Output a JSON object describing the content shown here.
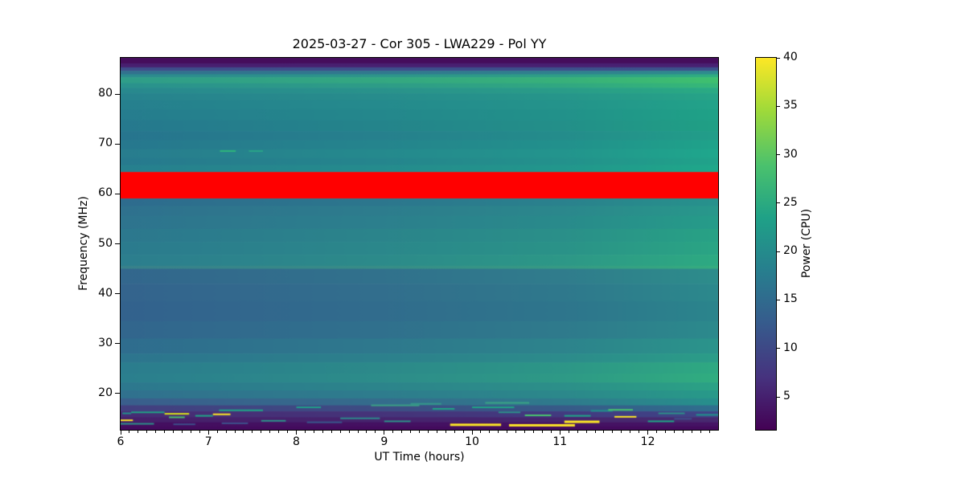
{
  "chart_data": {
    "type": "heatmap",
    "title": "2025-03-27 - Cor 305 - LWA229 - Pol YY",
    "xlabel": "UT Time (hours)",
    "ylabel": "Frequency (MHz)",
    "x_range": [
      6,
      12.8
    ],
    "y_range": [
      12.7,
      87.3
    ],
    "x_major_ticks": [
      6,
      7,
      8,
      9,
      10,
      11,
      12
    ],
    "x_minor_tick_step": 0.1,
    "y_major_ticks": [
      20,
      30,
      40,
      50,
      60,
      70,
      80
    ],
    "grid": false,
    "colorbar": {
      "label": "Power (CPU)",
      "ticks": [
        5,
        10,
        15,
        20,
        25,
        30,
        35,
        40
      ],
      "range": [
        1.6,
        40
      ],
      "colormap": "viridis",
      "gradient": [
        [
          0.0,
          "#440154"
        ],
        [
          0.14,
          "#46327e"
        ],
        [
          0.29,
          "#365c8d"
        ],
        [
          0.43,
          "#277f8e"
        ],
        [
          0.57,
          "#1fa187"
        ],
        [
          0.71,
          "#4ac16d"
        ],
        [
          0.86,
          "#a0da39"
        ],
        [
          1.0,
          "#fde725"
        ]
      ]
    },
    "flagged_band": {
      "f_lo": 59.1,
      "f_hi": 64.4,
      "color": "#ff0000",
      "meaning": "saturated/flagged RFI band"
    },
    "bands": [
      {
        "f_hi": 87.3,
        "f_lo": 86.2,
        "left": "#450d5c",
        "right": "#450d5c"
      },
      {
        "f_hi": 86.2,
        "f_lo": 85.4,
        "left": "#481f70",
        "right": "#482173"
      },
      {
        "f_hi": 85.4,
        "f_lo": 84.7,
        "left": "#3f4d8a",
        "right": "#3c528c"
      },
      {
        "f_hi": 84.7,
        "f_lo": 84.0,
        "left": "#32718e",
        "right": "#2e8c8e"
      },
      {
        "f_hi": 84.0,
        "f_lo": 83.4,
        "left": "#2c8b8e",
        "right": "#2fae80"
      },
      {
        "f_hi": 83.4,
        "f_lo": 82.2,
        "left": "#2f9d89",
        "right": "#3fc06f"
      },
      {
        "f_hi": 82.2,
        "f_lo": 81.3,
        "left": "#2a928d",
        "right": "#36b878"
      },
      {
        "f_hi": 81.3,
        "f_lo": 80.2,
        "left": "#28898e",
        "right": "#2aab83"
      },
      {
        "f_hi": 80.2,
        "f_lo": 78.8,
        "left": "#27838e",
        "right": "#26a487"
      },
      {
        "f_hi": 78.8,
        "f_lo": 77.0,
        "left": "#26808e",
        "right": "#22a389"
      },
      {
        "f_hi": 77.0,
        "f_lo": 74.8,
        "left": "#267d8e",
        "right": "#1fa287"
      },
      {
        "f_hi": 74.8,
        "f_lo": 72.6,
        "left": "#26798e",
        "right": "#20a085"
      },
      {
        "f_hi": 72.6,
        "f_lo": 70.8,
        "left": "#27758e",
        "right": "#229e89"
      },
      {
        "f_hi": 70.8,
        "f_lo": 69.0,
        "left": "#27788e",
        "right": "#1fa38a"
      },
      {
        "f_hi": 69.0,
        "f_lo": 67.2,
        "left": "#287d8e",
        "right": "#1fa78c"
      },
      {
        "f_hi": 67.2,
        "f_lo": 65.8,
        "left": "#277a8e",
        "right": "#20a38a"
      },
      {
        "f_hi": 65.8,
        "f_lo": 64.4,
        "left": "#27808e",
        "right": "#1fa88a"
      },
      {
        "f_hi": 59.1,
        "f_lo": 57.6,
        "left": "#2e6c8e",
        "right": "#27928c"
      },
      {
        "f_hi": 57.6,
        "f_lo": 55.6,
        "left": "#2f718e",
        "right": "#28988b"
      },
      {
        "f_hi": 55.6,
        "f_lo": 53.0,
        "left": "#2e748e",
        "right": "#269c89"
      },
      {
        "f_hi": 53.0,
        "f_lo": 50.4,
        "left": "#2c788e",
        "right": "#28a285"
      },
      {
        "f_hi": 50.4,
        "f_lo": 47.8,
        "left": "#2b7b8e",
        "right": "#2aa584"
      },
      {
        "f_hi": 47.8,
        "f_lo": 45.6,
        "left": "#2c7e8e",
        "right": "#2daa82"
      },
      {
        "f_hi": 45.6,
        "f_lo": 45.0,
        "left": "#38818b",
        "right": "#35ad7f"
      },
      {
        "f_hi": 45.0,
        "f_lo": 42.0,
        "left": "#33678d",
        "right": "#2d8d8b"
      },
      {
        "f_hi": 42.0,
        "f_lo": 38.5,
        "left": "#34648d",
        "right": "#2c898c"
      },
      {
        "f_hi": 38.5,
        "f_lo": 34.5,
        "left": "#33628d",
        "right": "#2b858c"
      },
      {
        "f_hi": 34.5,
        "f_lo": 31.0,
        "left": "#32668d",
        "right": "#2c8a8c"
      },
      {
        "f_hi": 31.0,
        "f_lo": 28.0,
        "left": "#2f6d8e",
        "right": "#2b948b"
      },
      {
        "f_hi": 28.0,
        "f_lo": 26.2,
        "left": "#2d758e",
        "right": "#2b9d88"
      },
      {
        "f_hi": 26.2,
        "f_lo": 24.0,
        "left": "#2b7d8e",
        "right": "#2fa982"
      },
      {
        "f_hi": 24.0,
        "f_lo": 22.2,
        "left": "#2b7f8e",
        "right": "#31ad80"
      },
      {
        "f_hi": 22.2,
        "f_lo": 20.6,
        "left": "#2d788e",
        "right": "#2ba285"
      },
      {
        "f_hi": 20.6,
        "f_lo": 19.0,
        "left": "#31718e",
        "right": "#289a89"
      },
      {
        "f_hi": 19.0,
        "f_lo": 17.6,
        "left": "#3a5e8c",
        "right": "#27908c"
      },
      {
        "f_hi": 17.6,
        "f_lo": 16.4,
        "left": "#433f80",
        "right": "#2f6f8e"
      },
      {
        "f_hi": 16.4,
        "f_lo": 15.2,
        "left": "#472c74",
        "right": "#3f4588"
      },
      {
        "f_hi": 15.2,
        "f_lo": 14.2,
        "left": "#46206b",
        "right": "#472a70"
      },
      {
        "f_hi": 14.2,
        "f_lo": 13.4,
        "left": "#440f60",
        "right": "#451465"
      },
      {
        "f_hi": 13.4,
        "f_lo": 12.7,
        "left": "#430b5d",
        "right": "#430b5d"
      }
    ],
    "rfi_streaks": [
      {
        "t": 6.0,
        "dt": 0.14,
        "f": 14.6,
        "color": "#fde725",
        "h": 2
      },
      {
        "t": 6.0,
        "dt": 0.38,
        "f": 13.9,
        "color": "#2d9089",
        "h": 2
      },
      {
        "t": 6.02,
        "dt": 0.1,
        "f": 16.0,
        "color": "#21918c",
        "h": 2
      },
      {
        "t": 6.12,
        "dt": 0.38,
        "f": 16.2,
        "color": "#20a486",
        "h": 2
      },
      {
        "t": 6.5,
        "dt": 0.28,
        "f": 15.9,
        "color": "#d8e219",
        "h": 2
      },
      {
        "t": 6.55,
        "dt": 0.18,
        "f": 15.2,
        "color": "#49c16d",
        "h": 2
      },
      {
        "t": 6.6,
        "dt": 0.25,
        "f": 13.8,
        "color": "#3d4e8a",
        "h": 2
      },
      {
        "t": 6.85,
        "dt": 0.2,
        "f": 15.5,
        "color": "#20a486",
        "h": 2
      },
      {
        "t": 7.05,
        "dt": 0.2,
        "f": 15.8,
        "color": "#fde725",
        "h": 2
      },
      {
        "t": 7.12,
        "dt": 0.5,
        "f": 16.6,
        "color": "#20a486",
        "h": 2
      },
      {
        "t": 7.15,
        "dt": 0.3,
        "f": 14.0,
        "color": "#3d4e8a",
        "h": 2
      },
      {
        "t": 7.6,
        "dt": 0.28,
        "f": 14.5,
        "color": "#2d9089",
        "h": 2
      },
      {
        "t": 8.0,
        "dt": 0.28,
        "f": 17.2,
        "color": "#21a08a",
        "h": 2
      },
      {
        "t": 8.12,
        "dt": 0.4,
        "f": 14.2,
        "color": "#39568b",
        "h": 2
      },
      {
        "t": 8.5,
        "dt": 0.45,
        "f": 15.0,
        "color": "#2d8a8c",
        "h": 2
      },
      {
        "t": 8.85,
        "dt": 0.55,
        "f": 17.6,
        "color": "#3ba085",
        "h": 2
      },
      {
        "t": 9.0,
        "dt": 0.3,
        "f": 14.4,
        "color": "#2d9089",
        "h": 2
      },
      {
        "t": 9.3,
        "dt": 0.35,
        "f": 17.9,
        "color": "#35978a",
        "h": 2
      },
      {
        "t": 9.55,
        "dt": 0.25,
        "f": 16.9,
        "color": "#20a486",
        "h": 2
      },
      {
        "t": 9.75,
        "dt": 0.58,
        "f": 13.7,
        "color": "#fde725",
        "h": 3
      },
      {
        "t": 10.0,
        "dt": 0.48,
        "f": 17.2,
        "color": "#20a486",
        "h": 2
      },
      {
        "t": 10.15,
        "dt": 0.5,
        "f": 18.1,
        "color": "#3aa486",
        "h": 2
      },
      {
        "t": 10.3,
        "dt": 0.25,
        "f": 16.2,
        "color": "#2d9089",
        "h": 2
      },
      {
        "t": 10.42,
        "dt": 0.75,
        "f": 13.6,
        "color": "#fde725",
        "h": 3
      },
      {
        "t": 10.6,
        "dt": 0.3,
        "f": 15.6,
        "color": "#49c16d",
        "h": 2
      },
      {
        "t": 11.05,
        "dt": 0.4,
        "f": 14.3,
        "color": "#fde725",
        "h": 3
      },
      {
        "t": 11.05,
        "dt": 0.3,
        "f": 15.5,
        "color": "#20a486",
        "h": 2
      },
      {
        "t": 11.35,
        "dt": 0.25,
        "f": 16.5,
        "color": "#21918c",
        "h": 2
      },
      {
        "t": 11.55,
        "dt": 0.28,
        "f": 16.7,
        "color": "#49c16d",
        "h": 2
      },
      {
        "t": 11.62,
        "dt": 0.25,
        "f": 15.3,
        "color": "#fde725",
        "h": 2
      },
      {
        "t": 12.0,
        "dt": 0.3,
        "f": 14.4,
        "color": "#20a486",
        "h": 2
      },
      {
        "t": 12.12,
        "dt": 0.3,
        "f": 16.0,
        "color": "#2d9089",
        "h": 2
      },
      {
        "t": 12.3,
        "dt": 0.2,
        "f": 14.9,
        "color": "#3d4e8a",
        "h": 2
      },
      {
        "t": 12.55,
        "dt": 0.33,
        "f": 15.7,
        "color": "#21918c",
        "h": 2
      }
    ],
    "spot_streaks": [
      {
        "t": 7.13,
        "dt": 0.18,
        "f": 68.6,
        "color": "#2fb57c",
        "h": 2
      },
      {
        "t": 7.46,
        "dt": 0.16,
        "f": 68.6,
        "color": "#2aa487",
        "h": 2
      }
    ]
  }
}
